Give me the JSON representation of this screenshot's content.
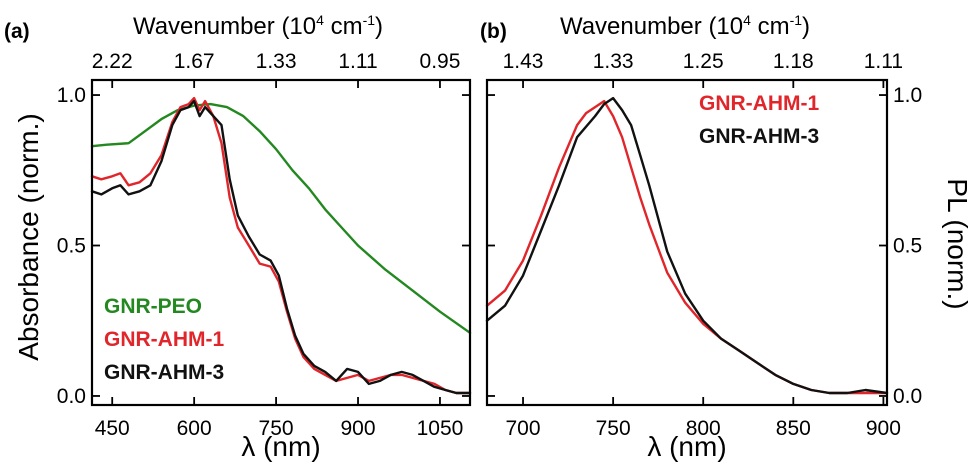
{
  "chart_data": [
    {
      "panel": "(a)",
      "type": "line",
      "top_axis": {
        "label": "Wavenumber (10",
        "sup": "4",
        "label_unit": " cm",
        "sup2": "-1",
        "label_end": ")",
        "ticks": [
          "2.22",
          "1.67",
          "1.33",
          "1.11",
          "0.95"
        ],
        "tick_positions_nm": [
          450,
          600,
          750,
          900,
          1050
        ]
      },
      "xlabel": "λ (nm)",
      "ylabel": "Absorbance (norm.)",
      "xlim": [
        413,
        1105
      ],
      "ylim": [
        -0.03,
        1.05
      ],
      "xticks": [
        "450",
        "600",
        "750",
        "900",
        "1050"
      ],
      "xtick_values": [
        450,
        600,
        750,
        900,
        1050
      ],
      "yticks": [
        "0.0",
        "0.5",
        "1.0"
      ],
      "ytick_values": [
        0,
        0.5,
        1.0
      ],
      "legend": [
        "GNR-PEO",
        "GNR-AHM-1",
        "GNR-AHM-3"
      ],
      "series": [
        {
          "name": "GNR-PEO",
          "color": "#22881f",
          "x": [
            413,
            440,
            480,
            510,
            540,
            570,
            600,
            630,
            660,
            690,
            720,
            750,
            780,
            810,
            840,
            870,
            900,
            950,
            1000,
            1050,
            1105
          ],
          "y": [
            0.83,
            0.835,
            0.84,
            0.88,
            0.92,
            0.95,
            0.965,
            0.97,
            0.96,
            0.93,
            0.88,
            0.82,
            0.75,
            0.69,
            0.62,
            0.56,
            0.5,
            0.42,
            0.35,
            0.28,
            0.21
          ]
        },
        {
          "name": "GNR-AHM-1",
          "color": "#e0262a",
          "x": [
            413,
            430,
            450,
            465,
            480,
            500,
            520,
            540,
            560,
            575,
            590,
            600,
            610,
            620,
            635,
            650,
            665,
            680,
            700,
            720,
            740,
            755,
            770,
            785,
            800,
            820,
            840,
            860,
            880,
            900,
            920,
            940,
            960,
            980,
            1000,
            1020,
            1040,
            1060,
            1080,
            1105
          ],
          "y": [
            0.73,
            0.72,
            0.73,
            0.74,
            0.7,
            0.71,
            0.74,
            0.8,
            0.91,
            0.96,
            0.97,
            0.99,
            0.95,
            0.98,
            0.93,
            0.84,
            0.66,
            0.56,
            0.5,
            0.44,
            0.43,
            0.38,
            0.28,
            0.19,
            0.13,
            0.09,
            0.07,
            0.05,
            0.06,
            0.07,
            0.05,
            0.06,
            0.07,
            0.07,
            0.06,
            0.05,
            0.04,
            0.02,
            0.01,
            0.01
          ]
        },
        {
          "name": "GNR-AHM-3",
          "color": "#111111",
          "x": [
            413,
            430,
            450,
            465,
            480,
            500,
            520,
            540,
            560,
            575,
            590,
            600,
            610,
            620,
            635,
            650,
            665,
            680,
            700,
            720,
            740,
            755,
            770,
            785,
            800,
            820,
            840,
            860,
            880,
            900,
            920,
            940,
            960,
            980,
            1000,
            1020,
            1040,
            1060,
            1080,
            1105
          ],
          "y": [
            0.68,
            0.67,
            0.69,
            0.7,
            0.67,
            0.68,
            0.7,
            0.78,
            0.9,
            0.95,
            0.96,
            0.98,
            0.93,
            0.96,
            0.93,
            0.9,
            0.72,
            0.6,
            0.53,
            0.47,
            0.45,
            0.4,
            0.29,
            0.2,
            0.14,
            0.1,
            0.08,
            0.05,
            0.09,
            0.08,
            0.04,
            0.05,
            0.07,
            0.08,
            0.07,
            0.05,
            0.03,
            0.02,
            0.01,
            0.01
          ]
        }
      ]
    },
    {
      "panel": "(b)",
      "type": "line",
      "top_axis": {
        "label": "Wavenumber (10",
        "sup": "4",
        "label_unit": " cm",
        "sup2": "-1",
        "label_end": ")",
        "ticks": [
          "1.43",
          "1.33",
          "1.25",
          "1.18",
          "1.11"
        ],
        "tick_positions_nm": [
          700,
          750,
          800,
          850,
          900
        ]
      },
      "xlabel": "λ (nm)",
      "ylabel": "PL (norm.)",
      "xlim": [
        680,
        902
      ],
      "ylim": [
        -0.03,
        1.05
      ],
      "xticks": [
        "700",
        "750",
        "800",
        "850",
        "900"
      ],
      "xtick_values": [
        700,
        750,
        800,
        850,
        900
      ],
      "yticks": [
        "0.0",
        "0.5",
        "1.0"
      ],
      "ytick_values": [
        0,
        0.5,
        1.0
      ],
      "legend": [
        "GNR-AHM-1",
        "GNR-AHM-3"
      ],
      "series": [
        {
          "name": "GNR-AHM-1",
          "color": "#e0262a",
          "x": [
            680,
            690,
            700,
            710,
            720,
            730,
            735,
            740,
            745,
            750,
            755,
            760,
            765,
            770,
            775,
            780,
            790,
            800,
            810,
            820,
            830,
            840,
            850,
            860,
            870,
            880,
            890,
            902
          ],
          "y": [
            0.3,
            0.35,
            0.45,
            0.6,
            0.76,
            0.9,
            0.94,
            0.96,
            0.98,
            0.93,
            0.86,
            0.76,
            0.66,
            0.57,
            0.49,
            0.41,
            0.31,
            0.24,
            0.19,
            0.15,
            0.11,
            0.07,
            0.04,
            0.02,
            0.01,
            0.01,
            0.01,
            0.01
          ]
        },
        {
          "name": "GNR-AHM-3",
          "color": "#111111",
          "x": [
            680,
            690,
            700,
            710,
            720,
            730,
            740,
            745,
            750,
            755,
            760,
            765,
            770,
            775,
            780,
            790,
            800,
            810,
            820,
            830,
            840,
            850,
            860,
            870,
            880,
            890,
            902
          ],
          "y": [
            0.25,
            0.3,
            0.4,
            0.55,
            0.7,
            0.86,
            0.93,
            0.97,
            0.99,
            0.95,
            0.9,
            0.8,
            0.7,
            0.59,
            0.48,
            0.34,
            0.25,
            0.19,
            0.15,
            0.11,
            0.07,
            0.04,
            0.02,
            0.01,
            0.01,
            0.02,
            0.01
          ]
        }
      ]
    }
  ]
}
